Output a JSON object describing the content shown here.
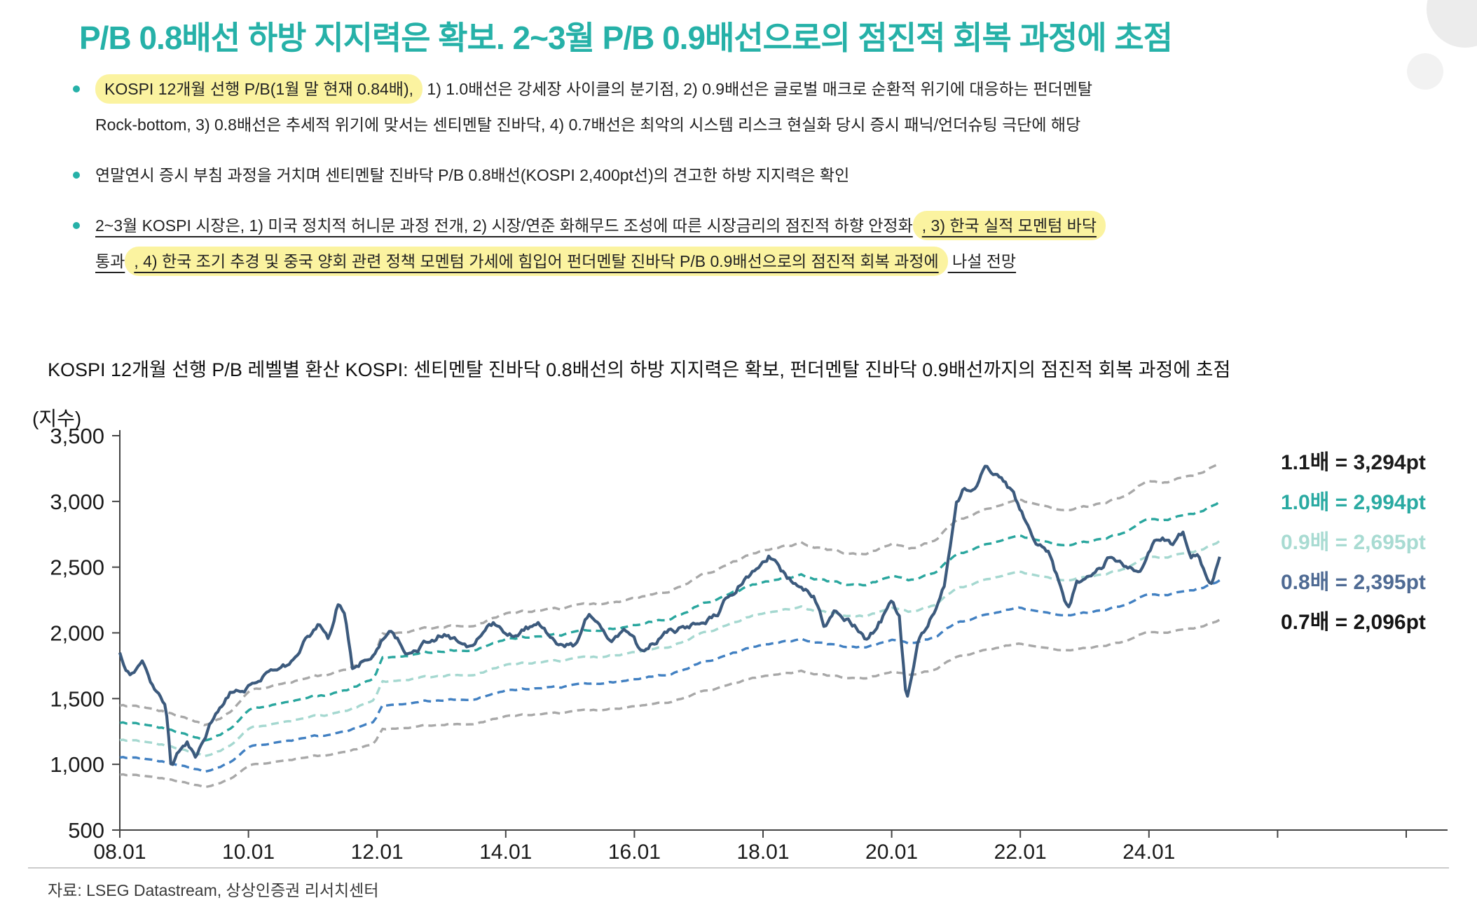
{
  "title": "P/B 0.8배선 하방 지지력은 확보. 2~3월 P/B 0.9배선으로의 점진적 회복 과정에 초점",
  "bullets": {
    "b1": {
      "hl": "KOSPI 12개월 선행 P/B(1월 말 현재 0.84배),",
      "r1": " 1) 1.0배선은 강세장 사이클의 분기점, 2) 0.9배선은 글로벌 매크로 순환적 위기에 대응하는 펀더멘탈",
      "r2": "Rock-bottom, 3) 0.8배선은 추세적 위기에 맞서는 센티멘탈 진바닥, 4) 0.7배선은 최악의 시스템 리스크 현실화 당시 증시 패닉/언더슈팅 극단에 해당"
    },
    "b2": {
      "text": "연말연시 증시 부침 과정을 거치며 센티멘탈 진바닥 P/B 0.8배선(KOSPI 2,400pt선)의 견고한 하방 지지력은 확인"
    },
    "b3": {
      "s1": "2~3월 KOSPI 시장은, 1) 미국 정치적 허니문 과정 전개, 2) 시장/연준 화해무드 조성에 따른 시장금리의 점진적 하향 안정화",
      "s2": ", 3) 한국 실적 모멘텀 바닥",
      "s3": "통과",
      "s4": ", 4) 한국 조기 추경 및 중국 양회 관련 정책 모멘텀 가세에 힘입어 펀더멘탈 진바닥 P/B 0.9배선으로의 점진적 회복 과정에",
      "s5": " 나설 전망"
    }
  },
  "chart_data": {
    "type": "line",
    "title": "KOSPI 12개월 선행  P/B 레벨별 환산 KOSPI: 센티멘탈 진바닥 0.8배선의 하방 지지력은 확보, 펀더멘탈 진바닥 0.9배선까지의 점진적 회복 과정에 초점",
    "unit_label": "(지수)",
    "ylim": [
      500,
      3500
    ],
    "yticks": [
      "3,500",
      "3,000",
      "2,500",
      "2,000",
      "1,500",
      "1,000",
      "500"
    ],
    "xticks": [
      "08.01",
      "10.01",
      "12.01",
      "14.01",
      "16.01",
      "18.01",
      "20.01",
      "22.01",
      "24.01"
    ],
    "x_range_years": [
      2008.0,
      2025.1
    ],
    "grid": false,
    "legend_position": "right-inside",
    "kospi_color": "#3c5a7d",
    "legend": [
      {
        "label": "1.1배 = 3,294pt",
        "multiple": 1.1,
        "value_pt": 3294,
        "color": "#1b1b1b",
        "line_color": "#a8a8a8"
      },
      {
        "label": "1.0배 = 2,994pt",
        "multiple": 1.0,
        "value_pt": 2994,
        "color": "#2aaaa2",
        "line_color": "#29a69e"
      },
      {
        "label": "0.9배 = 2,695pt",
        "multiple": 0.9,
        "value_pt": 2695,
        "color": "#a8dbd2",
        "line_color": "#a5d8d0"
      },
      {
        "label": "0.8배 = 2,395pt",
        "multiple": 0.8,
        "value_pt": 2395,
        "color": "#4e6a93",
        "line_color": "#4180c2"
      },
      {
        "label": "0.7배 = 2,096pt",
        "multiple": 0.7,
        "value_pt": 2096,
        "color": "#141414",
        "line_color": "#a8a8a8"
      }
    ],
    "base_pb10_keyframes": [
      [
        2008.0,
        1320
      ],
      [
        2008.4,
        1300
      ],
      [
        2008.8,
        1255
      ],
      [
        2009.1,
        1205
      ],
      [
        2009.35,
        1180
      ],
      [
        2009.7,
        1265
      ],
      [
        2010.0,
        1420
      ],
      [
        2010.5,
        1460
      ],
      [
        2011.0,
        1505
      ],
      [
        2011.5,
        1545
      ],
      [
        2011.95,
        1640
      ],
      [
        2012.08,
        1800
      ],
      [
        2012.5,
        1830
      ],
      [
        2013.0,
        1858
      ],
      [
        2013.5,
        1885
      ],
      [
        2014.0,
        1940
      ],
      [
        2014.5,
        1968
      ],
      [
        2015.0,
        1990
      ],
      [
        2015.5,
        2012
      ],
      [
        2016.0,
        2060
      ],
      [
        2016.6,
        2120
      ],
      [
        2017.0,
        2205
      ],
      [
        2017.5,
        2300
      ],
      [
        2018.0,
        2390
      ],
      [
        2018.6,
        2430
      ],
      [
        2019.2,
        2372
      ],
      [
        2019.6,
        2358
      ],
      [
        2020.0,
        2432
      ],
      [
        2020.25,
        2392
      ],
      [
        2020.7,
        2465
      ],
      [
        2021.05,
        2600
      ],
      [
        2021.5,
        2672
      ],
      [
        2022.0,
        2752
      ],
      [
        2022.4,
        2690
      ],
      [
        2022.8,
        2662
      ],
      [
        2023.2,
        2700
      ],
      [
        2023.6,
        2762
      ],
      [
        2024.0,
        2878
      ],
      [
        2024.3,
        2858
      ],
      [
        2024.6,
        2902
      ],
      [
        2024.85,
        2932
      ],
      [
        2025.1,
        2994
      ]
    ],
    "kospi_keyframes": [
      [
        2008.0,
        1853
      ],
      [
        2008.15,
        1705
      ],
      [
        2008.35,
        1808
      ],
      [
        2008.55,
        1590
      ],
      [
        2008.72,
        1420
      ],
      [
        2008.8,
        965
      ],
      [
        2008.9,
        1130
      ],
      [
        2009.05,
        1170
      ],
      [
        2009.18,
        1048
      ],
      [
        2009.4,
        1310
      ],
      [
        2009.7,
        1555
      ],
      [
        2010.0,
        1605
      ],
      [
        2010.3,
        1725
      ],
      [
        2010.6,
        1765
      ],
      [
        2010.9,
        1960
      ],
      [
        2011.1,
        2080
      ],
      [
        2011.25,
        1975
      ],
      [
        2011.38,
        2205
      ],
      [
        2011.48,
        2160
      ],
      [
        2011.62,
        1725
      ],
      [
        2011.78,
        1790
      ],
      [
        2012.0,
        1885
      ],
      [
        2012.2,
        2045
      ],
      [
        2012.55,
        1825
      ],
      [
        2012.85,
        1945
      ],
      [
        2013.05,
        2005
      ],
      [
        2013.4,
        1895
      ],
      [
        2013.8,
        2055
      ],
      [
        2014.2,
        1955
      ],
      [
        2014.5,
        2082
      ],
      [
        2014.85,
        1935
      ],
      [
        2015.05,
        1925
      ],
      [
        2015.3,
        2155
      ],
      [
        2015.65,
        1925
      ],
      [
        2015.9,
        2005
      ],
      [
        2016.12,
        1848
      ],
      [
        2016.45,
        1995
      ],
      [
        2016.75,
        2045
      ],
      [
        2017.0,
        2075
      ],
      [
        2017.3,
        2172
      ],
      [
        2017.65,
        2395
      ],
      [
        2017.95,
        2490
      ],
      [
        2018.1,
        2575
      ],
      [
        2018.3,
        2445
      ],
      [
        2018.55,
        2340
      ],
      [
        2018.78,
        2285
      ],
      [
        2018.95,
        2065
      ],
      [
        2019.15,
        2185
      ],
      [
        2019.35,
        2095
      ],
      [
        2019.62,
        1948
      ],
      [
        2019.82,
        2085
      ],
      [
        2020.0,
        2232
      ],
      [
        2020.12,
        2110
      ],
      [
        2020.23,
        1475
      ],
      [
        2020.42,
        1955
      ],
      [
        2020.62,
        2135
      ],
      [
        2020.82,
        2360
      ],
      [
        2021.0,
        2985
      ],
      [
        2021.12,
        3105
      ],
      [
        2021.3,
        3065
      ],
      [
        2021.45,
        3285
      ],
      [
        2021.62,
        3225
      ],
      [
        2021.82,
        3105
      ],
      [
        2022.0,
        2925
      ],
      [
        2022.22,
        2705
      ],
      [
        2022.45,
        2625
      ],
      [
        2022.62,
        2355
      ],
      [
        2022.74,
        2185
      ],
      [
        2022.88,
        2405
      ],
      [
        2023.02,
        2385
      ],
      [
        2023.18,
        2455
      ],
      [
        2023.38,
        2575
      ],
      [
        2023.58,
        2525
      ],
      [
        2023.78,
        2455
      ],
      [
        2023.92,
        2505
      ],
      [
        2024.06,
        2645
      ],
      [
        2024.22,
        2735
      ],
      [
        2024.38,
        2685
      ],
      [
        2024.52,
        2765
      ],
      [
        2024.64,
        2585
      ],
      [
        2024.76,
        2605
      ],
      [
        2024.88,
        2425
      ],
      [
        2024.96,
        2365
      ],
      [
        2025.02,
        2455
      ],
      [
        2025.1,
        2545
      ]
    ]
  },
  "source": "자료: LSEG Datastream, 상상인증권 리서치센터"
}
